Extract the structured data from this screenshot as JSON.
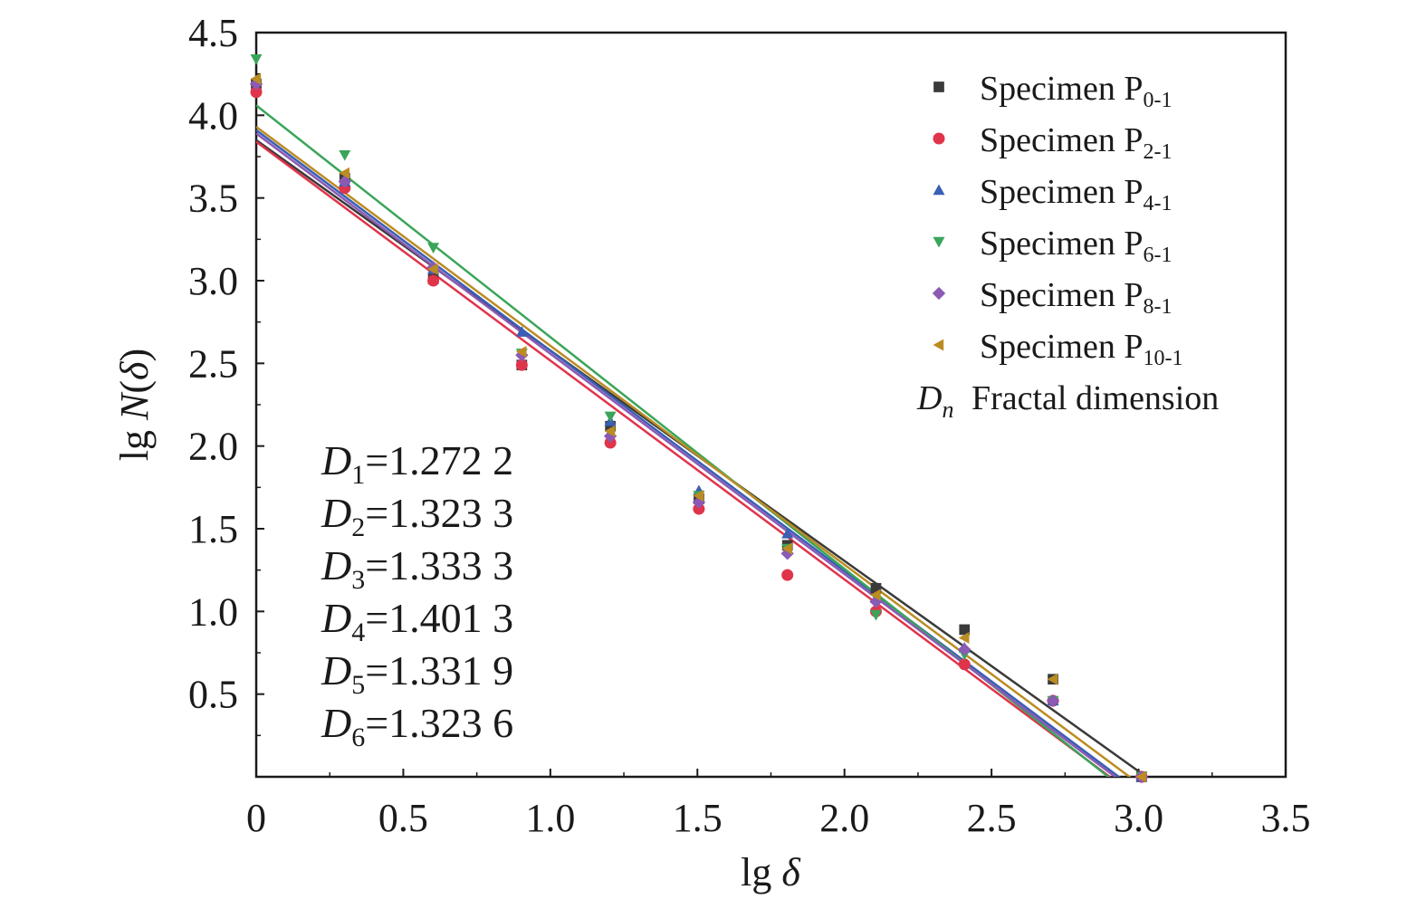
{
  "chart_data": {
    "type": "scatter",
    "xlabel": "lg δ",
    "ylabel": "lg N(δ)",
    "xlim": [
      0,
      3.5
    ],
    "ylim": [
      0,
      4.5
    ],
    "x_ticks": [
      "0",
      "0.5",
      "1.0",
      "1.5",
      "2.0",
      "2.5",
      "3.0",
      "3.5"
    ],
    "y_ticks": [
      "0.5",
      "1.0",
      "1.5",
      "2.0",
      "2.5",
      "3.0",
      "3.5",
      "4.0",
      "4.5"
    ],
    "grid": false,
    "legend_position": "top-right",
    "x": [
      0,
      0.301,
      0.602,
      0.903,
      1.204,
      1.505,
      1.806,
      2.107,
      2.408,
      2.709,
      3.01
    ],
    "series": [
      {
        "name_base": "Specimen P",
        "name_sub": "0-1",
        "marker": "square",
        "color": "#3a3a3a",
        "values": [
          4.19,
          3.62,
          3.01,
          2.49,
          2.12,
          1.68,
          1.4,
          1.14,
          0.89,
          0.59,
          0.0
        ],
        "fit": {
          "intercept": 3.85,
          "slope": -1.2722
        }
      },
      {
        "name_base": "Specimen P",
        "name_sub": "2-1",
        "marker": "circle",
        "color": "#e0344b",
        "values": [
          4.14,
          3.56,
          3.0,
          2.49,
          2.02,
          1.62,
          1.22,
          1.0,
          0.68,
          0.46,
          0.0
        ],
        "fit": {
          "intercept": 3.84,
          "slope": -1.3233
        }
      },
      {
        "name_base": "Specimen P",
        "name_sub": "4-1",
        "marker": "triangle-up",
        "color": "#3a5fb4",
        "values": [
          4.21,
          3.6,
          3.07,
          2.69,
          2.15,
          1.73,
          1.47,
          1.08,
          0.78,
          0.46,
          0.0
        ],
        "fit": {
          "intercept": 3.91,
          "slope": -1.3333
        }
      },
      {
        "name_base": "Specimen P",
        "name_sub": "6-1",
        "marker": "triangle-down",
        "color": "#3aa55a",
        "values": [
          4.34,
          3.76,
          3.2,
          2.56,
          2.18,
          1.7,
          1.38,
          0.98,
          0.74,
          0.46,
          0.0
        ],
        "fit": {
          "intercept": 4.06,
          "slope": -1.4013
        }
      },
      {
        "name_base": "Specimen P",
        "name_sub": "8-1",
        "marker": "diamond",
        "color": "#8a5ab4",
        "values": [
          4.19,
          3.6,
          3.08,
          2.55,
          2.06,
          1.66,
          1.35,
          1.06,
          0.77,
          0.46,
          0.0
        ],
        "fit": {
          "intercept": 3.89,
          "slope": -1.3319
        }
      },
      {
        "name_base": "Specimen P",
        "name_sub": "10-1",
        "marker": "triangle-left",
        "color": "#bb8c22",
        "values": [
          4.22,
          3.65,
          3.07,
          2.57,
          2.09,
          1.7,
          1.38,
          1.1,
          0.84,
          0.59,
          0.0
        ],
        "fit": {
          "intercept": 3.93,
          "slope": -1.3236
        }
      }
    ],
    "legend_extra": {
      "symbol": "D",
      "symbol_sub": "n",
      "text": "Fractal dimension"
    },
    "annotations": [
      {
        "symbol": "D",
        "sub": "1",
        "value": "=1.272 2"
      },
      {
        "symbol": "D",
        "sub": "2",
        "value": "=1.323 3"
      },
      {
        "symbol": "D",
        "sub": "3",
        "value": "=1.333 3"
      },
      {
        "symbol": "D",
        "sub": "4",
        "value": "=1.401 3"
      },
      {
        "symbol": "D",
        "sub": "5",
        "value": "=1.331 9"
      },
      {
        "symbol": "D",
        "sub": "6",
        "value": "=1.323 6"
      }
    ]
  }
}
